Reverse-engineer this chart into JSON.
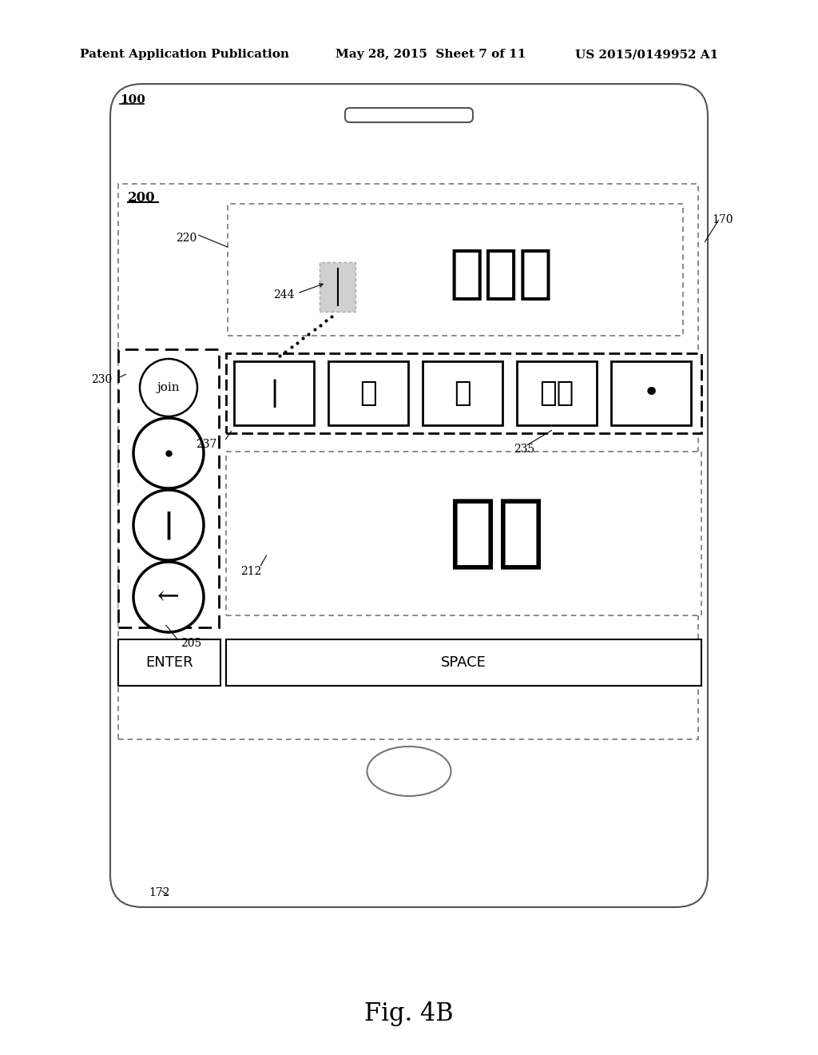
{
  "bg_color": "#ffffff",
  "header_left": "Patent Application Publication",
  "header_mid": "May 28, 2015  Sheet 7 of 11",
  "header_right": "US 2015/0149952 A1",
  "fig_label": "Fig. 4B",
  "phone_label": "100",
  "keyboard_label": "200",
  "label_170": "170",
  "label_172": "172",
  "label_220": "220",
  "label_230": "230",
  "label_205": "205",
  "label_237": "237",
  "label_235": "235",
  "label_244": "244",
  "label_212": "212",
  "hindi_text_top": "क्ख",
  "hindi_text_bottom": "कख",
  "key_chars": [
    "|",
    "न",
    "उ",
    "व्",
    "•"
  ],
  "enter_label": "ENTER",
  "space_label": "SPACE",
  "join_label": "join"
}
